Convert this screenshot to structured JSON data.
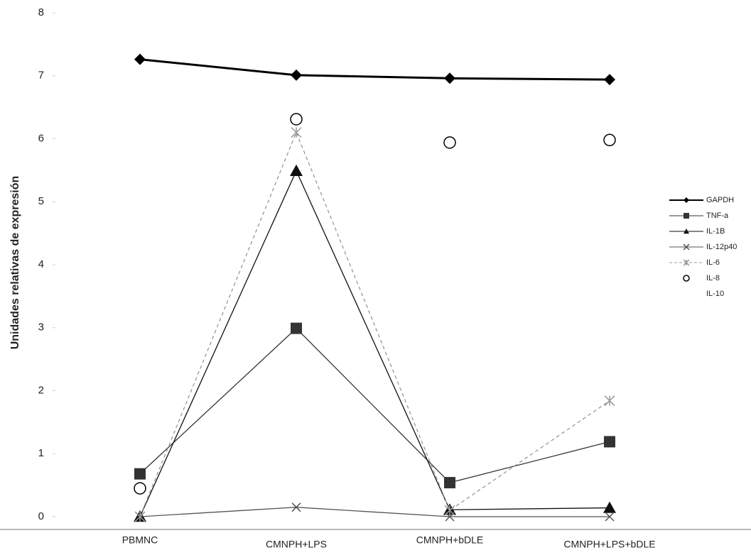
{
  "chart_data": {
    "type": "line",
    "y_label": "Unidades relativas de expresión",
    "categories": [
      "PBMNC",
      "CMNPH+LPS",
      "CMNPH+bDLE",
      "CMNPH+LPS+bDLE"
    ],
    "ylim": [
      0,
      8
    ],
    "yticks": [
      0,
      1,
      2,
      3,
      4,
      5,
      6,
      7,
      8
    ],
    "grid": false,
    "legend": "right",
    "series": [
      {
        "name": "GAPDH",
        "color": "#000000",
        "marker": "diamond",
        "line": "solid",
        "values": [
          7.26,
          7.01,
          6.96,
          6.94
        ]
      },
      {
        "name": "TNF-a",
        "color": "#333333",
        "marker": "square",
        "line": "solid",
        "values": [
          0.68,
          2.99,
          0.54,
          1.19
        ]
      },
      {
        "name": "IL-1B",
        "color": "#111111",
        "marker": "triangle",
        "line": "solid",
        "values": [
          0,
          5.49,
          0.11,
          0.14
        ]
      },
      {
        "name": "IL-12p40",
        "color": "#555555",
        "marker": "x",
        "line": "solid",
        "values": [
          0,
          0.15,
          0,
          0
        ]
      },
      {
        "name": "IL-6",
        "color": "#999999",
        "marker": "star",
        "line": "dashed",
        "values": [
          0,
          6.1,
          0.1,
          1.84
        ]
      },
      {
        "name": "IL-8",
        "color": "#000000",
        "marker": "circle",
        "line": "none",
        "values": [
          0.45,
          6.31,
          5.94,
          5.98
        ]
      },
      {
        "name": "IL-10",
        "color": "#ffffff",
        "marker": "none",
        "line": "none",
        "values": [
          null,
          null,
          null,
          null
        ]
      }
    ]
  }
}
